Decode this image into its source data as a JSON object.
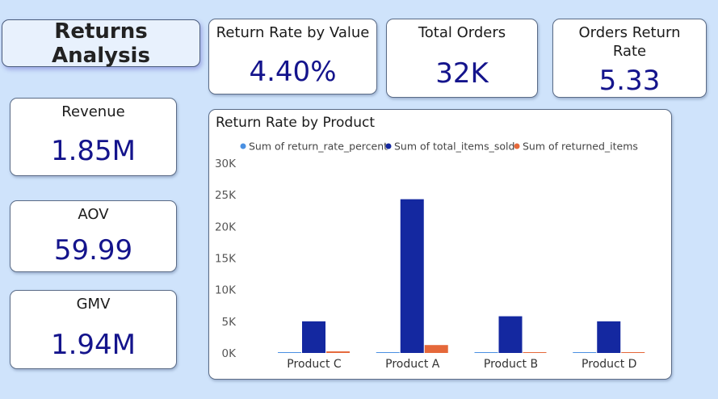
{
  "header": {
    "title": "Returns Analysis"
  },
  "kpis": {
    "return_rate_by_value": {
      "label": "Return Rate by Value",
      "value": "4.40%"
    },
    "total_orders": {
      "label": "Total Orders",
      "value": "32K"
    },
    "orders_return_rate": {
      "label_line1": "Orders Return",
      "label_line2": "Rate",
      "value": "5.33"
    },
    "revenue": {
      "label": "Revenue",
      "value": "1.85M"
    },
    "aov": {
      "label": "AOV",
      "value": "59.99"
    },
    "gmv": {
      "label": "GMV",
      "value": "1.94M"
    }
  },
  "chart_data": {
    "type": "bar",
    "title": "Return Rate by Product",
    "categories": [
      "Product C",
      "Product A",
      "Product B",
      "Product D"
    ],
    "series": [
      {
        "name": "Sum of return_rate_percent",
        "values": [
          5,
          5,
          5,
          5
        ],
        "color": "#4a90e2"
      },
      {
        "name": "Sum of total_items_sold",
        "values": [
          5000,
          24300,
          5800,
          5000
        ],
        "color": "#1428a0"
      },
      {
        "name": "Sum of returned_items",
        "values": [
          250,
          1250,
          120,
          130
        ],
        "color": "#e5683a"
      }
    ],
    "ylim": [
      0,
      30000
    ],
    "yticks": [
      0,
      5000,
      10000,
      15000,
      20000,
      25000,
      30000
    ],
    "ytick_labels": [
      "0K",
      "5K",
      "10K",
      "15K",
      "20K",
      "25K",
      "30K"
    ],
    "legend_position": "top",
    "grid": false
  }
}
